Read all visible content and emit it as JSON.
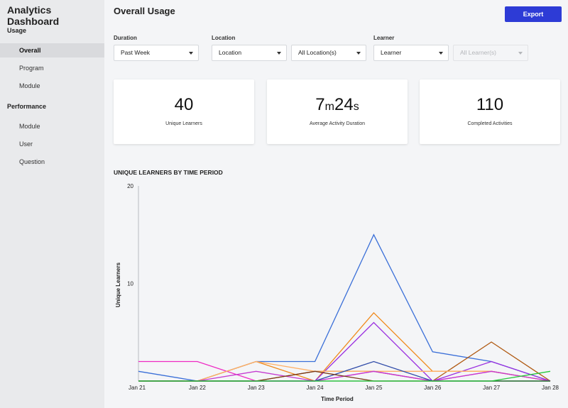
{
  "sidebar": {
    "title": "Analytics Dashboard",
    "sections": [
      {
        "label": "Usage",
        "items": [
          {
            "label": "Overall",
            "active": true
          },
          {
            "label": "Program"
          },
          {
            "label": "Module"
          }
        ]
      },
      {
        "label": "Performance",
        "items": [
          {
            "label": "Module"
          },
          {
            "label": "User"
          },
          {
            "label": "Question"
          }
        ]
      }
    ]
  },
  "header": {
    "title": "Overall Usage",
    "export_label": "Export"
  },
  "filters": {
    "duration": {
      "label": "Duration",
      "value": "Past Week"
    },
    "location": {
      "label": "Location",
      "value": "Location",
      "sub_value": "All Location(s)"
    },
    "learner": {
      "label": "Learner",
      "value": "Learner",
      "sub_placeholder": "All Learner(s)"
    }
  },
  "stats": {
    "unique_learners": {
      "value": "40",
      "label": "Unique Learners"
    },
    "avg_duration": {
      "minutes": "7",
      "min_unit": "m",
      "seconds": "24",
      "sec_unit": "s",
      "label": "Average Activity Duration"
    },
    "completed": {
      "value": "110",
      "label": "Completed Activities"
    }
  },
  "chart_data": {
    "type": "line",
    "title": "UNIQUE LEARNERS BY TIME PERIOD",
    "xlabel": "Time Period",
    "ylabel": "Unique Learners",
    "categories": [
      "Jan 21",
      "Jan 22",
      "Jan 23",
      "Jan 24",
      "Jan 25",
      "Jan 26",
      "Jan 27",
      "Jan 28"
    ],
    "ylim": [
      0,
      20
    ],
    "yticks": [
      10,
      20
    ],
    "grid": false,
    "series": [
      {
        "color": "#3a6fd8",
        "values": [
          1,
          0,
          2,
          2,
          15,
          3,
          2,
          0
        ]
      },
      {
        "color": "#f08a1c",
        "values": [
          0,
          0,
          2,
          0,
          7,
          1,
          1,
          0
        ]
      },
      {
        "color": "#b05a12",
        "values": [
          0,
          0,
          0,
          1,
          1,
          0,
          4,
          0
        ]
      },
      {
        "color": "#9a2ee0",
        "values": [
          0,
          0,
          0,
          0,
          6,
          0,
          2,
          0
        ]
      },
      {
        "color": "#ee2ac4",
        "values": [
          2,
          2,
          0,
          0,
          1,
          0,
          1,
          0
        ]
      },
      {
        "color": "#ffb066",
        "values": [
          0,
          0,
          2,
          1,
          1,
          1,
          1,
          0
        ]
      },
      {
        "color": "#c43bd0",
        "values": [
          0,
          0,
          1,
          0,
          1,
          0,
          1,
          0
        ]
      },
      {
        "color": "#2e4aa8",
        "values": [
          0,
          0,
          0,
          0,
          2,
          0,
          0,
          0
        ]
      },
      {
        "color": "#7a3a1a",
        "values": [
          0,
          0,
          0,
          1,
          0,
          0,
          0,
          0
        ]
      },
      {
        "color": "#1f7a2e",
        "values": [
          0,
          0,
          0,
          0,
          0,
          0,
          0,
          0
        ]
      },
      {
        "color": "#25c93a",
        "values": [
          0,
          0,
          0,
          0,
          0,
          0,
          0,
          1
        ]
      }
    ]
  }
}
